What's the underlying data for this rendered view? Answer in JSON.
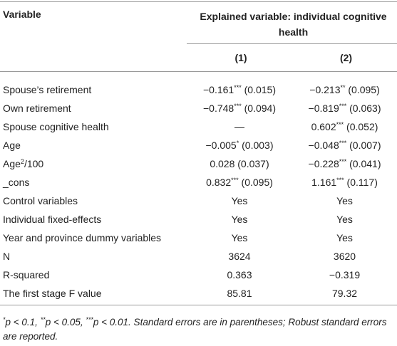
{
  "table": {
    "header": {
      "variable": "Variable",
      "explained": "Explained variable: individual cognitive health",
      "columns": [
        "(1)",
        "(2)"
      ]
    },
    "rows": [
      [
        "Spouse’s retirement",
        "−0.161*** (0.015)",
        "−0.213** (0.095)"
      ],
      [
        "Own retirement",
        "−0.748*** (0.094)",
        "−0.819*** (0.063)"
      ],
      [
        "Spouse cognitive health",
        "—",
        "0.602*** (0.052)"
      ],
      [
        "Age",
        "−0.005* (0.003)",
        "−0.048*** (0.007)"
      ],
      [
        {
          "text": "Age",
          "sup": "2",
          "after": "/100"
        },
        "0.028 (0.037)",
        "−0.228*** (0.041)"
      ],
      [
        "_cons",
        "0.832*** (0.095)",
        "1.161*** (0.117)"
      ],
      [
        "Control variables",
        "Yes",
        "Yes"
      ],
      [
        "Individual fixed-effects",
        "Yes",
        "Yes"
      ],
      [
        "Year and province dummy variables",
        "Yes",
        "Yes"
      ],
      [
        "N",
        "3624",
        "3620"
      ],
      [
        "R-squared",
        "0.363",
        "−0.319"
      ],
      [
        "The first stage F value",
        "85.81",
        "79.32"
      ]
    ],
    "footnote": "*p < 0.1, **p < 0.05, ***p < 0.01. Standard errors are in parentheses; Robust standard errors are reported."
  }
}
